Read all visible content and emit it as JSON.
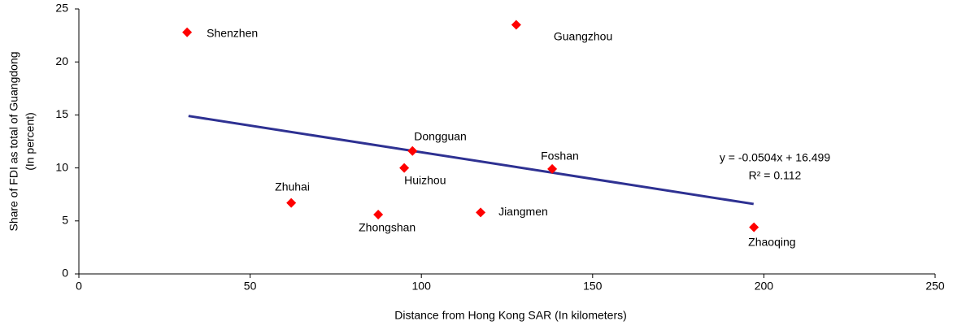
{
  "chart_data": {
    "type": "scatter",
    "x_label": "Distance from Hong Kong SAR (In kilometers)",
    "y_label": [
      "Share of FDI as total of Guangdong",
      "(In percent)"
    ],
    "xlim": [
      0,
      250
    ],
    "xticks": [
      0,
      50,
      100,
      150,
      200,
      250
    ],
    "ylim": [
      0,
      25
    ],
    "yticks": [
      0,
      5,
      10,
      15,
      20,
      25
    ],
    "grid": false,
    "series": [
      {
        "color": "#ff0000",
        "labels": [
          "Shenzhen",
          "Guangzhou",
          "Dongguan",
          "Huizhou",
          "Foshan",
          "Zhuhai",
          "Zhongshan",
          "Jiangmen",
          "Zhaoqing"
        ],
        "x": [
          31.6,
          127.7,
          97.4,
          95,
          138.2,
          62,
          87.4,
          117.3,
          197.1
        ],
        "values": [
          22.8,
          23.5,
          11.6,
          10,
          9.9,
          6.7,
          5.6,
          5.8,
          4.4
        ]
      }
    ],
    "trendline": {
      "color": "#2e3192",
      "x": [
        32,
        197
      ],
      "values": [
        14.9,
        6.6
      ],
      "equation": "y = -0.0504x + 16.499",
      "r_squared": "R² = 0.112"
    }
  }
}
